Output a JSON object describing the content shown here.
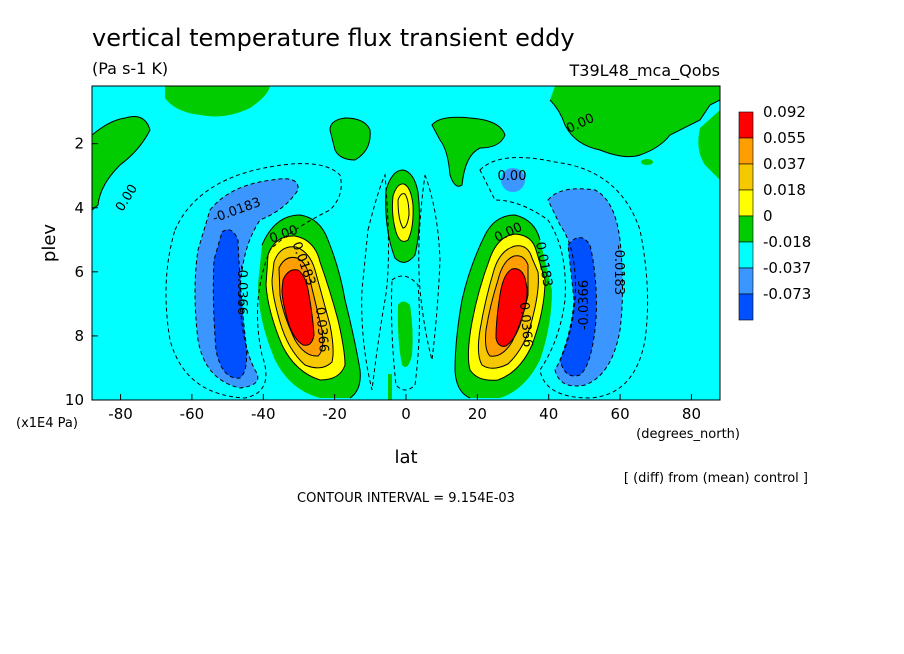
{
  "chart_data": {
    "type": "heatmap",
    "title": "vertical temperature flux transient eddy",
    "units": "(Pa s-1 K)",
    "experiment": "T39L48_mca_Qobs",
    "xlabel": "lat",
    "x_units": "(degrees_north)",
    "ylabel": "plev",
    "y_units": "(x1E4 Pa)",
    "xlim": [
      -88,
      88
    ],
    "ylim": [
      10,
      0.2
    ],
    "x_ticks": [
      "-80",
      "-60",
      "-40",
      "-20",
      "0",
      "20",
      "40",
      "60",
      "80"
    ],
    "x_tick_values": [
      -80,
      -60,
      -40,
      -20,
      0,
      20,
      40,
      60,
      80
    ],
    "y_ticks": [
      "2",
      "4",
      "6",
      "8",
      "10"
    ],
    "y_tick_values": [
      2,
      4,
      6,
      8,
      10
    ],
    "note": "[ (diff) from (mean) control ]",
    "contour_interval": "CONTOUR INTERVAL = 9.154E-03",
    "colorbar": {
      "labels": [
        "0.092",
        "0.055",
        "0.037",
        "0.018",
        "0",
        "-0.018",
        "-0.037",
        "-0.073"
      ],
      "colors": [
        "#ff0000",
        "#ff9e00",
        "#f5c800",
        "#ffff00",
        "#00cc00",
        "#00ffff",
        "#3c96ff",
        "#0050ff"
      ]
    },
    "contour_labels": [
      "0.00",
      "0.00",
      "-0.0183",
      "0.00",
      "0.0183",
      "-0.0366",
      "0.0366",
      "0.00",
      "0.0183",
      "0.0366",
      "-0.0366",
      "-0.0183",
      "0.00"
    ],
    "features": [
      {
        "name": "positive-lobe-south",
        "lat": -31,
        "plev": 7.0,
        "value": 0.092
      },
      {
        "name": "positive-lobe-north",
        "lat": 31,
        "plev": 7.0,
        "value": 0.092
      },
      {
        "name": "negative-lobe-south",
        "lat": -50,
        "plev": 7.5,
        "value": -0.0366
      },
      {
        "name": "negative-lobe-north",
        "lat": 50,
        "plev": 7.5,
        "value": -0.0366
      },
      {
        "name": "equatorial-positive",
        "lat": 0,
        "plev": 4.0,
        "value": 0.0183
      }
    ]
  },
  "labels": {
    "x_unit_note": "(degrees_north)",
    "y_unit_note": "(x1E4 Pa)"
  }
}
